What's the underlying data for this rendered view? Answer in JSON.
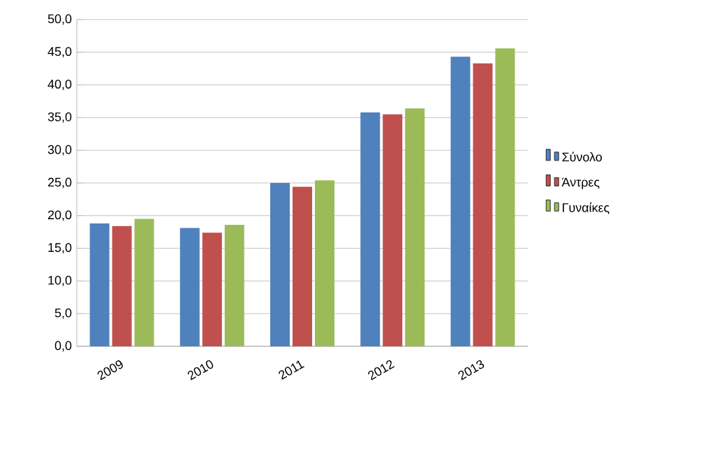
{
  "chart_data": {
    "type": "bar",
    "categories": [
      "2009",
      "2010",
      "2011",
      "2012",
      "2013"
    ],
    "series": [
      {
        "name": "Σύνολο",
        "color": "#4f81bd",
        "values": [
          18.8,
          18.1,
          25.0,
          35.8,
          44.3
        ]
      },
      {
        "name": "Άντρες",
        "color": "#c0504d",
        "values": [
          18.4,
          17.4,
          24.4,
          35.5,
          43.3
        ]
      },
      {
        "name": "Γυναίκες",
        "color": "#9bbb59",
        "values": [
          19.5,
          18.6,
          25.4,
          36.4,
          45.6
        ]
      }
    ],
    "ylim": [
      0,
      50
    ],
    "yticks": [
      {
        "value": 0,
        "label": "0,0"
      },
      {
        "value": 5,
        "label": "5,0"
      },
      {
        "value": 10,
        "label": "10,0"
      },
      {
        "value": 15,
        "label": "15,0"
      },
      {
        "value": 20,
        "label": "20,0"
      },
      {
        "value": 25,
        "label": "25,0"
      },
      {
        "value": 30,
        "label": "30,0"
      },
      {
        "value": 35,
        "label": "35,0"
      },
      {
        "value": 40,
        "label": "40,0"
      },
      {
        "value": 45,
        "label": "45,0"
      },
      {
        "value": 50,
        "label": "50,0"
      }
    ],
    "grid": "y",
    "legend": "right"
  }
}
